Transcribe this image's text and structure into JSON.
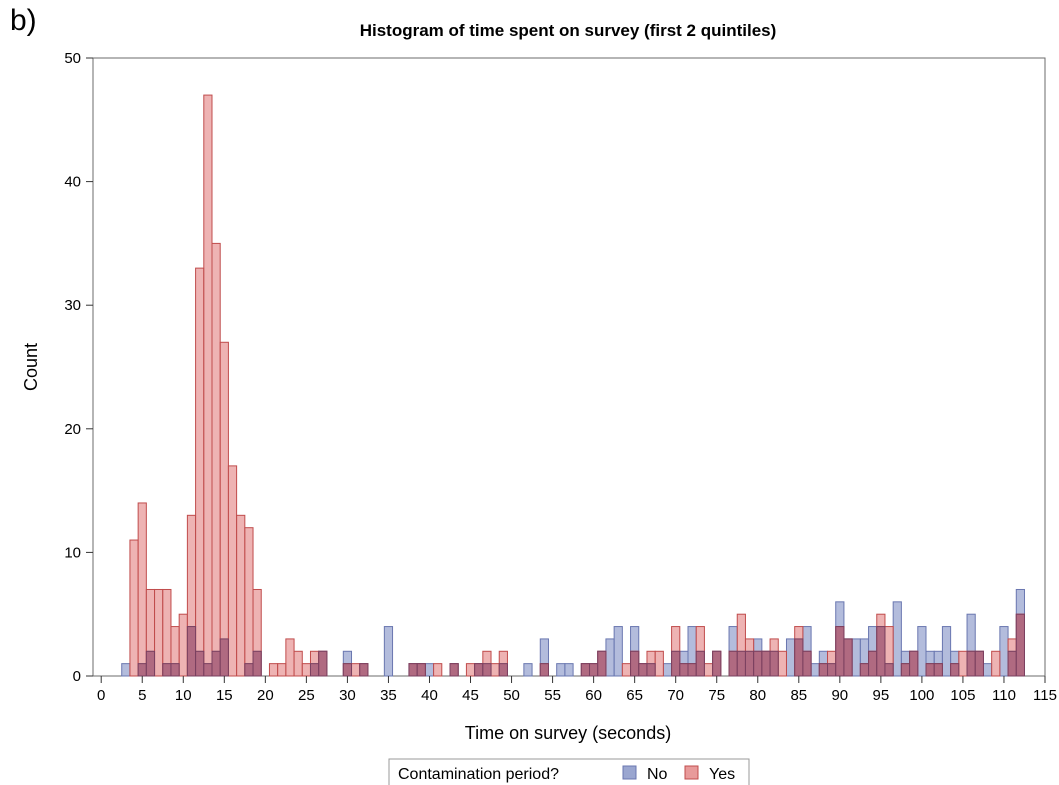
{
  "panel_label": "b)",
  "legend": {
    "title": "Contamination period?",
    "items": [
      {
        "label": "No",
        "fill": "#9aa6d0",
        "stroke": "#6a77b0"
      },
      {
        "label": "Yes",
        "fill": "#e89a9a",
        "stroke": "#c04c4c"
      }
    ]
  },
  "colors": {
    "no": "#9aa6d0",
    "yes": "#e89a9a",
    "overlap": "#a8607a"
  },
  "chart_data": {
    "type": "bar",
    "title": "Histogram of time spent on survey (first 2 quintiles)",
    "xlabel": "Time on survey (seconds)",
    "ylabel": "Count",
    "xlim": [
      -1,
      115
    ],
    "ylim": [
      0,
      50
    ],
    "x_ticks": [
      0,
      5,
      10,
      15,
      20,
      25,
      30,
      35,
      40,
      45,
      50,
      55,
      60,
      65,
      70,
      75,
      80,
      85,
      90,
      95,
      100,
      105,
      110,
      115
    ],
    "y_ticks": [
      0,
      10,
      20,
      30,
      40,
      50
    ],
    "legend_position": "bottom",
    "bin_width": 1,
    "series": [
      {
        "name": "No",
        "values": [
          [
            3,
            1
          ],
          [
            5,
            1
          ],
          [
            6,
            2
          ],
          [
            8,
            1
          ],
          [
            9,
            1
          ],
          [
            11,
            4
          ],
          [
            12,
            2
          ],
          [
            13,
            1
          ],
          [
            14,
            2
          ],
          [
            15,
            3
          ],
          [
            18,
            1
          ],
          [
            19,
            2
          ],
          [
            26,
            1
          ],
          [
            27,
            2
          ],
          [
            30,
            2
          ],
          [
            32,
            1
          ],
          [
            35,
            4
          ],
          [
            38,
            1
          ],
          [
            39,
            1
          ],
          [
            40,
            1
          ],
          [
            43,
            1
          ],
          [
            46,
            1
          ],
          [
            47,
            1
          ],
          [
            49,
            1
          ],
          [
            52,
            1
          ],
          [
            54,
            3
          ],
          [
            56,
            1
          ],
          [
            57,
            1
          ],
          [
            59,
            1
          ],
          [
            60,
            1
          ],
          [
            61,
            2
          ],
          [
            62,
            3
          ],
          [
            63,
            4
          ],
          [
            65,
            4
          ],
          [
            66,
            1
          ],
          [
            67,
            1
          ],
          [
            69,
            1
          ],
          [
            70,
            2
          ],
          [
            71,
            2
          ],
          [
            72,
            4
          ],
          [
            73,
            2
          ],
          [
            75,
            2
          ],
          [
            77,
            4
          ],
          [
            78,
            2
          ],
          [
            79,
            2
          ],
          [
            80,
            3
          ],
          [
            81,
            2
          ],
          [
            82,
            2
          ],
          [
            84,
            3
          ],
          [
            85,
            3
          ],
          [
            86,
            4
          ],
          [
            87,
            1
          ],
          [
            88,
            2
          ],
          [
            89,
            1
          ],
          [
            90,
            6
          ],
          [
            91,
            3
          ],
          [
            92,
            3
          ],
          [
            93,
            3
          ],
          [
            94,
            4
          ],
          [
            95,
            4
          ],
          [
            96,
            1
          ],
          [
            97,
            6
          ],
          [
            98,
            2
          ],
          [
            99,
            2
          ],
          [
            100,
            4
          ],
          [
            101,
            2
          ],
          [
            102,
            2
          ],
          [
            103,
            4
          ],
          [
            104,
            2
          ],
          [
            106,
            5
          ],
          [
            107,
            2
          ],
          [
            108,
            1
          ],
          [
            110,
            4
          ],
          [
            111,
            2
          ],
          [
            112,
            7
          ]
        ]
      },
      {
        "name": "Yes",
        "values": [
          [
            4,
            11
          ],
          [
            5,
            14
          ],
          [
            6,
            7
          ],
          [
            7,
            7
          ],
          [
            8,
            7
          ],
          [
            9,
            4
          ],
          [
            10,
            5
          ],
          [
            11,
            13
          ],
          [
            12,
            33
          ],
          [
            13,
            47
          ],
          [
            14,
            35
          ],
          [
            15,
            27
          ],
          [
            16,
            17
          ],
          [
            17,
            13
          ],
          [
            18,
            12
          ],
          [
            19,
            7
          ],
          [
            21,
            1
          ],
          [
            22,
            1
          ],
          [
            23,
            3
          ],
          [
            24,
            2
          ],
          [
            25,
            1
          ],
          [
            26,
            2
          ],
          [
            27,
            2
          ],
          [
            30,
            1
          ],
          [
            31,
            1
          ],
          [
            32,
            1
          ],
          [
            38,
            1
          ],
          [
            39,
            1
          ],
          [
            41,
            1
          ],
          [
            43,
            1
          ],
          [
            45,
            1
          ],
          [
            46,
            1
          ],
          [
            47,
            2
          ],
          [
            48,
            1
          ],
          [
            49,
            2
          ],
          [
            54,
            1
          ],
          [
            59,
            1
          ],
          [
            60,
            1
          ],
          [
            61,
            2
          ],
          [
            64,
            1
          ],
          [
            65,
            2
          ],
          [
            66,
            1
          ],
          [
            67,
            2
          ],
          [
            68,
            2
          ],
          [
            70,
            4
          ],
          [
            71,
            1
          ],
          [
            72,
            1
          ],
          [
            73,
            4
          ],
          [
            74,
            1
          ],
          [
            75,
            2
          ],
          [
            77,
            2
          ],
          [
            78,
            5
          ],
          [
            79,
            3
          ],
          [
            80,
            2
          ],
          [
            81,
            2
          ],
          [
            82,
            3
          ],
          [
            83,
            2
          ],
          [
            85,
            4
          ],
          [
            86,
            2
          ],
          [
            88,
            1
          ],
          [
            89,
            2
          ],
          [
            90,
            4
          ],
          [
            91,
            3
          ],
          [
            93,
            1
          ],
          [
            94,
            2
          ],
          [
            95,
            5
          ],
          [
            96,
            4
          ],
          [
            98,
            1
          ],
          [
            99,
            2
          ],
          [
            101,
            1
          ],
          [
            102,
            1
          ],
          [
            104,
            1
          ],
          [
            105,
            2
          ],
          [
            106,
            2
          ],
          [
            107,
            2
          ],
          [
            109,
            2
          ],
          [
            111,
            3
          ],
          [
            112,
            5
          ]
        ]
      }
    ]
  }
}
